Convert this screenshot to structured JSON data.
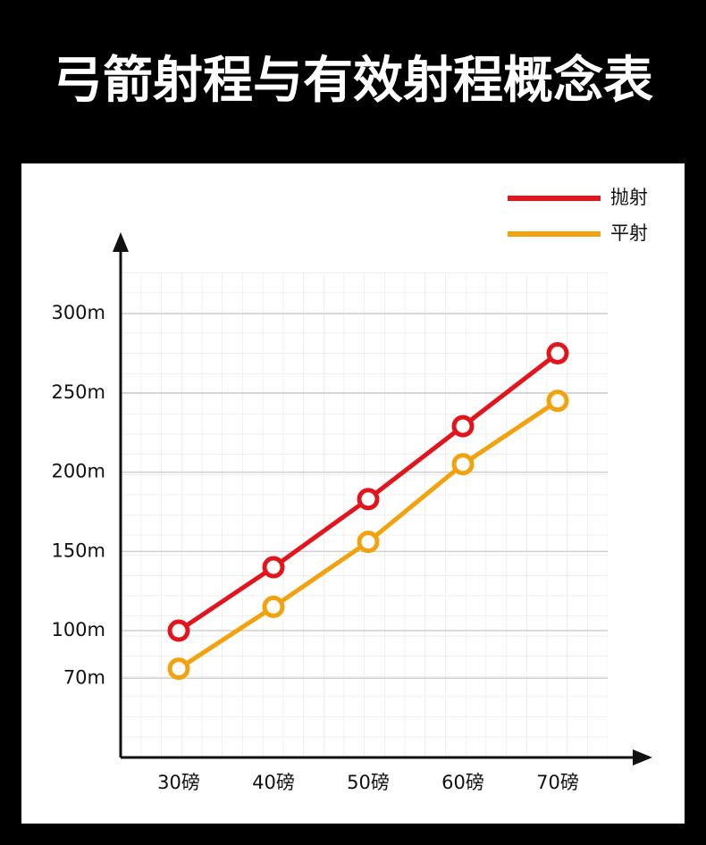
{
  "chart_data": {
    "type": "line",
    "title": "弓箭射程与有效射程概念表",
    "categories": [
      "30磅",
      "40磅",
      "50磅",
      "60磅",
      "70磅"
    ],
    "series": [
      {
        "name": "抛射",
        "color": "#e3141b",
        "values": [
          100,
          140,
          183,
          229,
          275
        ]
      },
      {
        "name": "平射",
        "color": "#f2a20c",
        "values": [
          76,
          115,
          156,
          205,
          245
        ]
      }
    ],
    "ylim": [
      20,
      326
    ],
    "yticks": [
      {
        "value": 70,
        "label": "70m"
      },
      {
        "value": 100,
        "label": "100m"
      },
      {
        "value": 150,
        "label": "150m"
      },
      {
        "value": 200,
        "label": "200m"
      },
      {
        "value": 250,
        "label": "250m"
      },
      {
        "value": 300,
        "label": "300m"
      }
    ],
    "grid": true,
    "legend": "top-right"
  }
}
